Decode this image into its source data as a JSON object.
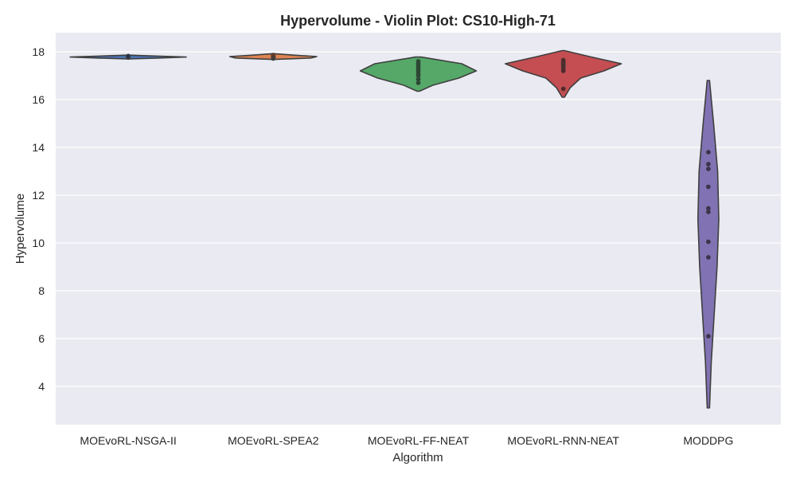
{
  "chart_data": {
    "type": "violin",
    "title": "Hypervolume - Violin Plot: CS10-High-71",
    "xlabel": "Algorithm",
    "ylabel": "Hypervolume",
    "ylim": [
      2.4,
      18.8
    ],
    "yticks": [
      4,
      6,
      8,
      10,
      12,
      14,
      16,
      18
    ],
    "grid": true,
    "categories": [
      "MOEvoRL-NSGA-II",
      "MOEvoRL-SPEA2",
      "MOEvoRL-FF-NEAT",
      "MOEvoRL-RNN-NEAT",
      "MODDPG"
    ],
    "series": [
      {
        "category": "MOEvoRL-NSGA-II",
        "color": "#4c72b0",
        "points": [
          17.76,
          17.77,
          17.78,
          17.79,
          17.8,
          17.8,
          17.81,
          17.82
        ],
        "violin": {
          "y": [
            17.7,
            17.74,
            17.78,
            17.82,
            17.86
          ],
          "density": [
            0.02,
            0.55,
            1.0,
            0.5,
            0.02
          ]
        }
      },
      {
        "category": "MOEvoRL-SPEA2",
        "color": "#dd8452",
        "points": [
          17.72,
          17.74,
          17.76,
          17.78,
          17.8,
          17.82,
          17.84,
          17.86
        ],
        "violin": {
          "y": [
            17.68,
            17.74,
            17.8,
            17.86,
            17.92
          ],
          "density": [
            0.02,
            0.65,
            0.75,
            0.35,
            0.02
          ]
        }
      },
      {
        "category": "MOEvoRL-FF-NEAT",
        "color": "#55a868",
        "points": [
          16.7,
          16.85,
          17.0,
          17.1,
          17.2,
          17.3,
          17.4,
          17.5,
          17.6
        ],
        "violin": {
          "y": [
            16.35,
            16.6,
            16.9,
            17.2,
            17.5,
            17.78
          ],
          "density": [
            0.02,
            0.25,
            0.7,
            1.0,
            0.75,
            0.05
          ]
        }
      },
      {
        "category": "MOEvoRL-RNN-NEAT",
        "color": "#c44e52",
        "points": [
          16.45,
          17.2,
          17.3,
          17.4,
          17.45,
          17.5,
          17.55,
          17.6,
          17.65
        ],
        "violin": {
          "y": [
            16.1,
            16.5,
            16.9,
            17.2,
            17.5,
            17.8,
            18.05
          ],
          "density": [
            0.02,
            0.12,
            0.3,
            0.7,
            1.0,
            0.45,
            0.02
          ]
        }
      },
      {
        "category": "MODDPG",
        "color": "#8172b3",
        "points": [
          6.1,
          9.4,
          10.05,
          11.3,
          11.45,
          12.35,
          13.1,
          13.3,
          13.8
        ],
        "violin": {
          "y": [
            3.1,
            5.0,
            7.0,
            9.0,
            11.0,
            13.0,
            15.0,
            16.8
          ],
          "density": [
            0.02,
            0.05,
            0.1,
            0.15,
            0.18,
            0.16,
            0.09,
            0.02
          ]
        }
      }
    ]
  }
}
